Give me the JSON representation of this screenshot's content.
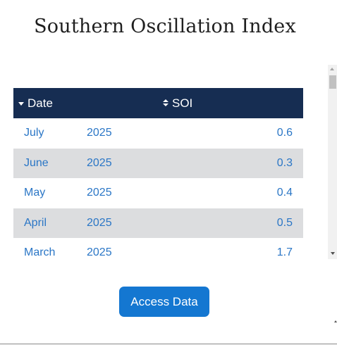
{
  "title": "Southern Oscillation Index",
  "table": {
    "headers": {
      "date": "Date",
      "soi": "SOI"
    },
    "sort_icons": {
      "date": "caret-down-icon",
      "soi": "sort-both-icon"
    },
    "rows": [
      {
        "month": "July",
        "year": "2025",
        "soi": "0.6"
      },
      {
        "month": "June",
        "year": "2025",
        "soi": "0.3"
      },
      {
        "month": "May",
        "year": "2025",
        "soi": "0.4"
      },
      {
        "month": "April",
        "year": "2025",
        "soi": "0.5"
      },
      {
        "month": "March",
        "year": "2025",
        "soi": "1.7"
      }
    ]
  },
  "button": {
    "access_label": "Access Data"
  },
  "colors": {
    "header_bg": "#162d52",
    "row_alt_bg": "#dcdddf",
    "link_text": "#2a76c6",
    "button_bg": "#1477d1"
  }
}
